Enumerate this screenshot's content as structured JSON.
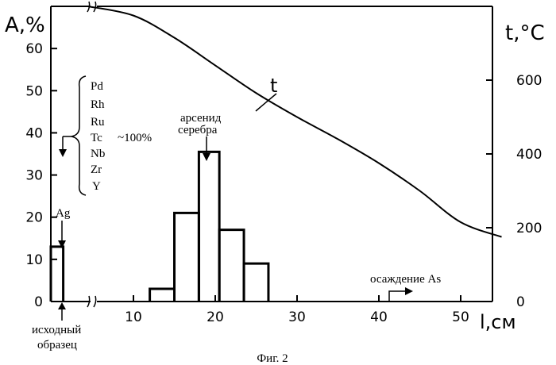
{
  "chart_data": {
    "type": "line",
    "xlabel": "l,см",
    "ylabel_left": "A,%",
    "ylabel_right": "t,°C",
    "x_ticks": [
      "10",
      "20",
      "30",
      "40",
      "50"
    ],
    "y_left_ticks": [
      "0",
      "10",
      "20",
      "30",
      "40",
      "50",
      "60"
    ],
    "y_right_ticks": [
      "0",
      "200",
      "400",
      "600"
    ],
    "xlim": [
      0,
      55
    ],
    "ylim_left": [
      0,
      70
    ],
    "ylim_right": [
      0,
      800
    ],
    "temperature_series": {
      "name": "t",
      "x": [
        4.5,
        10,
        15,
        20,
        25,
        30,
        35,
        40,
        45,
        50,
        55
      ],
      "y": [
        800,
        775,
        715,
        640,
        565,
        500,
        440,
        375,
        300,
        215,
        175
      ]
    },
    "histogram": [
      {
        "x0": 0,
        "x1": 1.5,
        "y": 13
      },
      {
        "x0": 12,
        "x1": 15,
        "y": 3
      },
      {
        "x0": 15,
        "x1": 18,
        "y": 21
      },
      {
        "x0": 18,
        "x1": 20.5,
        "y": 35.5
      },
      {
        "x0": 20.5,
        "x1": 23.5,
        "y": 17
      },
      {
        "x0": 23.5,
        "x1": 26.5,
        "y": 9
      }
    ],
    "elements": [
      "Pd",
      "Rh",
      "Ru",
      "Tc",
      "Nb",
      "Zr",
      "Y"
    ],
    "elements_value": "~100%",
    "annotations": {
      "ag": "Ag",
      "arsenide_line1": "арсенид",
      "arsenide_line2": "серебра",
      "deposition": "осаждение As",
      "source_line1": "исходный",
      "source_line2": "образец",
      "curve_label": "t"
    },
    "caption": "Фиг. 2"
  }
}
